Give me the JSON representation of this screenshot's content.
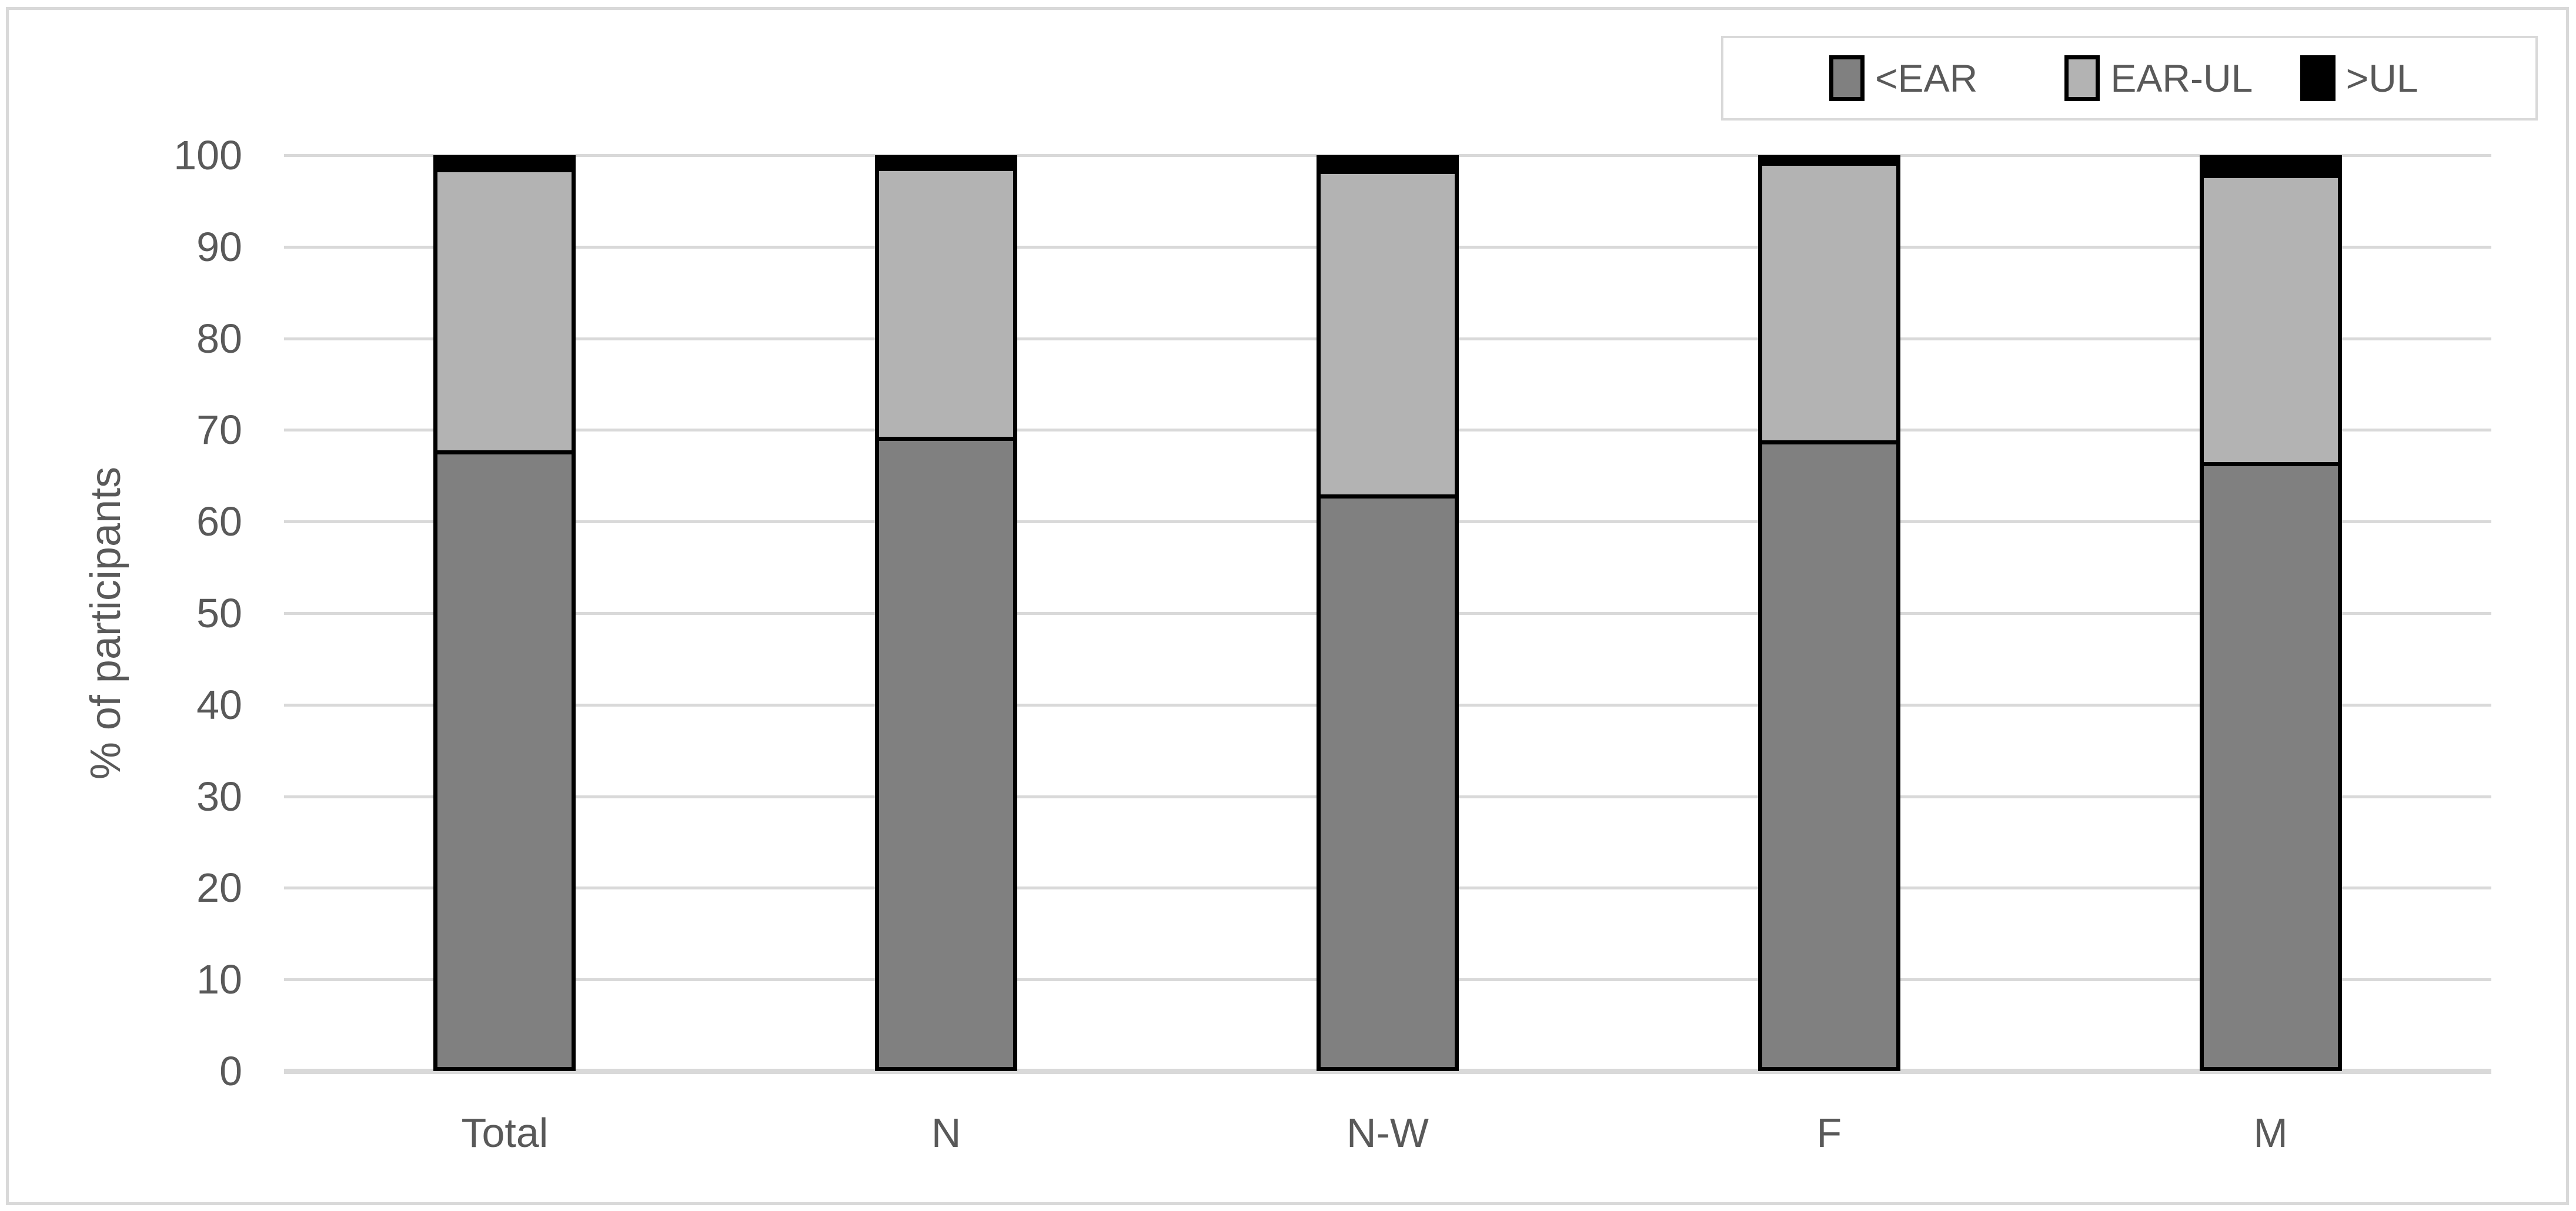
{
  "chart_data": {
    "type": "bar",
    "stacked": true,
    "percent_stacked": true,
    "title": "",
    "xlabel": "",
    "ylabel": "% of participants",
    "ylim": [
      0,
      100
    ],
    "yticks": [
      0,
      10,
      20,
      30,
      40,
      50,
      60,
      70,
      80,
      90,
      100
    ],
    "grid": true,
    "legend_position": "top-right",
    "categories": [
      "Total",
      "N",
      "N-W",
      "F",
      "M"
    ],
    "series": [
      {
        "name": "<EAR",
        "color": "#808080",
        "values": [
          67.5,
          69.0,
          62.6,
          68.6,
          66.2
        ]
      },
      {
        "name": "EAR-UL",
        "color": "#b3b3b3",
        "values": [
          31.1,
          29.7,
          35.8,
          30.7,
          31.7
        ]
      },
      {
        "name": ">UL",
        "color": "#000000",
        "values": [
          1.4,
          1.3,
          1.6,
          0.7,
          2.1
        ]
      }
    ]
  },
  "colors": {
    "background": "#ffffff",
    "frame_border": "#d9d9d9",
    "gridline": "#d9d9d9",
    "axis_line": "#d9d9d9",
    "text": "#595959",
    "bar_border": "#000000"
  }
}
